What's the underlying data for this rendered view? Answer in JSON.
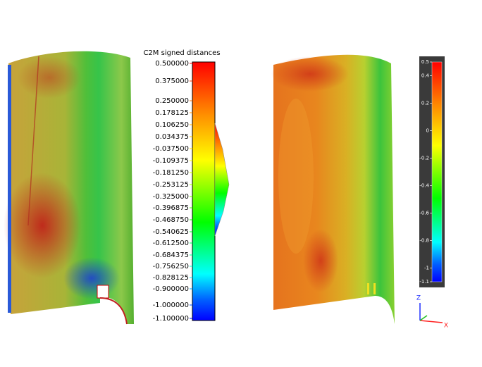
{
  "left_panel": {
    "colorbar": {
      "title": "C2M signed distances",
      "ticks": [
        {
          "value": 0.5,
          "label": "0.500000"
        },
        {
          "value": 0.375,
          "label": "0.375000"
        },
        {
          "value": 0.25,
          "label": "0.250000"
        },
        {
          "value": 0.178125,
          "label": "0.178125"
        },
        {
          "value": 0.10625,
          "label": "0.106250"
        },
        {
          "value": 0.034375,
          "label": "0.034375"
        },
        {
          "value": -0.0375,
          "label": "-0.037500"
        },
        {
          "value": -0.109375,
          "label": "-0.109375"
        },
        {
          "value": -0.18125,
          "label": "-0.181250"
        },
        {
          "value": -0.253125,
          "label": "-0.253125"
        },
        {
          "value": -0.325,
          "label": "-0.325000"
        },
        {
          "value": -0.396875,
          "label": "-0.396875"
        },
        {
          "value": -0.46875,
          "label": "-0.468750"
        },
        {
          "value": -0.540625,
          "label": "-0.540625"
        },
        {
          "value": -0.6125,
          "label": "-0.612500"
        },
        {
          "value": -0.684375,
          "label": "-0.684375"
        },
        {
          "value": -0.75625,
          "label": "-0.756250"
        },
        {
          "value": -0.828125,
          "label": "-0.828125"
        },
        {
          "value": -0.9,
          "label": "-0.900000"
        },
        {
          "value": -1.0,
          "label": "-1.000000"
        },
        {
          "value": -1.1,
          "label": "-1.100000"
        }
      ]
    }
  },
  "right_panel": {
    "colorbar": {
      "ticks": [
        0.5,
        0.4,
        0.2,
        0,
        -0.2,
        -0.4,
        -0.6,
        -0.8,
        -1,
        -1.1
      ]
    }
  },
  "axes": {
    "z": "Z",
    "x": "X"
  }
}
